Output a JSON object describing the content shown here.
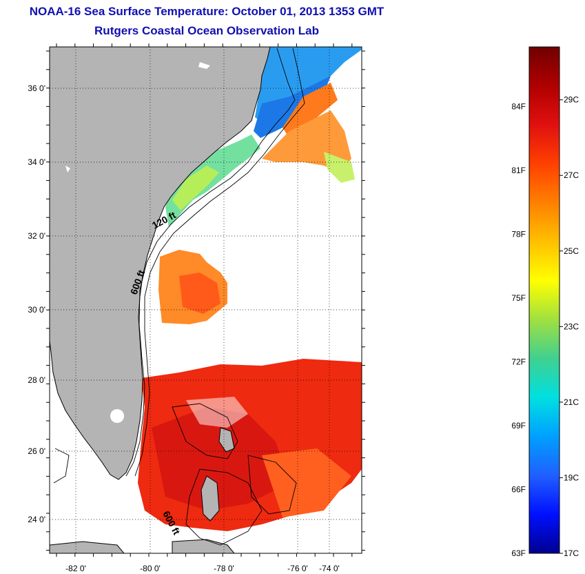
{
  "title": {
    "line1": "NOAA-16 Sea Surface Temperature:  October 01, 2013 1353 GMT",
    "line2": "Rutgers Coastal Ocean Observation Lab"
  },
  "map": {
    "lon_ticks": [
      "-82 0'",
      "-80 0'",
      "-78 0'",
      "-76 0'",
      "-74 0'"
    ],
    "lat_ticks": [
      "36 0'",
      "34 0'",
      "32 0'",
      "30 0'",
      "28 0'",
      "26 0'",
      "24 0'"
    ],
    "contour_labels": [
      "120 ft",
      "600 ft",
      "600 ft"
    ],
    "colors": {
      "land": "#b4b4b4",
      "ocean_nodata": "#ffffff"
    }
  },
  "colorbar": {
    "fahrenheit_labels": [
      "84F",
      "81F",
      "78F",
      "75F",
      "72F",
      "69F",
      "66F",
      "63F"
    ],
    "celsius_labels": [
      "29C",
      "27C",
      "25C",
      "23C",
      "21C",
      "19C",
      "17C"
    ],
    "gradient": [
      "#700000",
      "#b00000",
      "#e01010",
      "#ff4000",
      "#ff8000",
      "#ffc000",
      "#ffff00",
      "#a0e040",
      "#40d090",
      "#00e0e0",
      "#00a0ff",
      "#2060ff",
      "#0010ff",
      "#000090"
    ]
  }
}
